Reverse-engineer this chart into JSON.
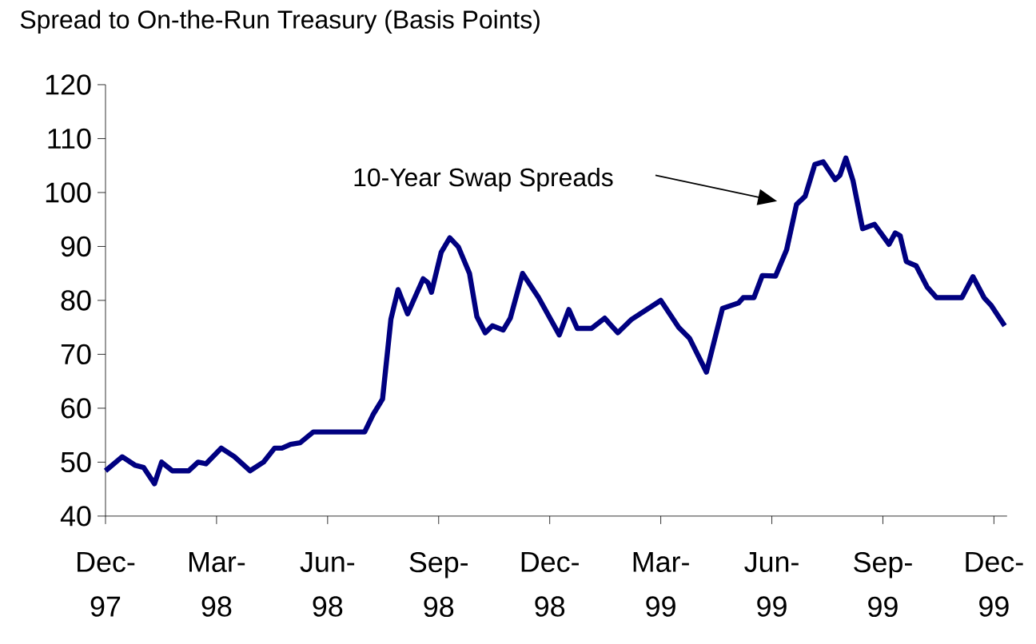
{
  "chart_data": {
    "type": "line",
    "title": "Spread to On-the-Run Treasury (Basis Points)",
    "x": [
      "1997-12-01",
      "1997-12-15",
      "1997-12-26",
      "1998-01-02",
      "1998-01-11",
      "1998-01-17",
      "1998-01-26",
      "1998-02-08",
      "1998-02-15",
      "1998-02-21",
      "1998-03-05",
      "1998-03-16",
      "1998-03-29",
      "1998-04-09",
      "1998-04-18",
      "1998-04-24",
      "1998-05-01",
      "1998-05-09",
      "1998-05-20",
      "1998-07-01",
      "1998-07-08",
      "1998-07-16",
      "1998-07-23",
      "1998-07-29",
      "1998-08-06",
      "1998-08-12",
      "1998-08-19",
      "1998-08-23",
      "1998-08-26",
      "1998-09-03",
      "1998-09-10",
      "1998-09-17",
      "1998-09-26",
      "1998-10-02",
      "1998-10-09",
      "1998-10-15",
      "1998-10-24",
      "1998-10-30",
      "1998-11-09",
      "1998-11-22",
      "1998-12-09",
      "1998-12-17",
      "1998-12-24",
      "1999-01-05",
      "1999-01-16",
      "1999-01-27",
      "1999-02-07",
      "1999-03-01",
      "1999-03-16",
      "1999-03-25",
      "1999-04-08",
      "1999-04-21",
      "1999-05-04",
      "1999-05-08",
      "1999-05-17",
      "1999-05-24",
      "1999-06-04",
      "1999-06-13",
      "1999-06-21",
      "1999-06-28",
      "1999-07-06",
      "1999-07-13",
      "1999-07-23",
      "1999-07-27",
      "1999-08-01",
      "1999-08-07",
      "1999-08-15",
      "1999-08-25",
      "1999-09-06",
      "1999-09-11",
      "1999-09-15",
      "1999-09-20",
      "1999-09-28",
      "1999-10-07",
      "1999-10-15",
      "1999-10-25",
      "1999-11-05",
      "1999-11-14",
      "1999-11-23",
      "1999-11-29",
      "1999-12-10"
    ],
    "series": [
      {
        "color": "#000080",
        "values": [
          48.4,
          51,
          49.4,
          49,
          46,
          50,
          48.4,
          48.4,
          50,
          49.7,
          52.6,
          51,
          48.4,
          50,
          52.6,
          52.6,
          53.3,
          53.6,
          55.6,
          55.6,
          58.8,
          61.7,
          76.5,
          82,
          77.5,
          80.5,
          84,
          83.3,
          81.5,
          88.9,
          91.6,
          89.9,
          85,
          77,
          74,
          75.3,
          74.5,
          76.7,
          85,
          80.5,
          73.6,
          78.3,
          74.8,
          74.8,
          76.7,
          74,
          76.5,
          80,
          75,
          73,
          66.7,
          78.5,
          79.5,
          80.5,
          80.5,
          84.6,
          84.5,
          89.4,
          97.8,
          99.3,
          105.2,
          105.7,
          102.4,
          103.2,
          106.4,
          102.2,
          93.3,
          94.1,
          90.4,
          92.5,
          92,
          87.2,
          86.4,
          82.5,
          80.5,
          80.5,
          80.5,
          84.4,
          80.5,
          79,
          75.3
        ]
      }
    ],
    "xlim": [
      "1997-12-01",
      "1999-12-12"
    ],
    "xticks": [
      {
        "value": "1997-12",
        "label": "Dec-97"
      },
      {
        "value": "1998-03",
        "label": "Mar-98"
      },
      {
        "value": "1998-06",
        "label": "Jun-98"
      },
      {
        "value": "1998-09",
        "label": "Sep-98"
      },
      {
        "value": "1998-12",
        "label": "Dec-98"
      },
      {
        "value": "1999-03",
        "label": "Mar-99"
      },
      {
        "value": "1999-06",
        "label": "Jun-99"
      },
      {
        "value": "1999-09",
        "label": "Sep-99"
      },
      {
        "value": "1999-12",
        "label": "Dec-99"
      }
    ],
    "ylim": [
      40,
      120
    ],
    "yticks": [
      40,
      50,
      60,
      70,
      80,
      90,
      100,
      110,
      120
    ],
    "grid": false,
    "marker": "none",
    "line_style": "solid",
    "annotations": [
      "10-Year Swap Spreads"
    ]
  }
}
